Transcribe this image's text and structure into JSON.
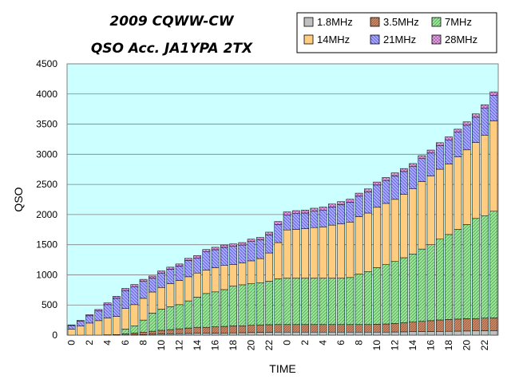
{
  "chart_data": {
    "type": "bar",
    "stacked": true,
    "title_line1": "2009 CQWW-CW",
    "title_line2": "QSO Acc.  JA1YPA  2TX",
    "xlabel": "TIME",
    "ylabel": "QSO",
    "ylim": [
      0,
      4500
    ],
    "yticks": [
      0,
      500,
      1000,
      1500,
      2000,
      2500,
      3000,
      3500,
      4000,
      4500
    ],
    "xtick_labels": [
      "0",
      "2",
      "4",
      "6",
      "8",
      "10",
      "12",
      "14",
      "16",
      "18",
      "20",
      "22",
      "0",
      "2",
      "4",
      "6",
      "8",
      "10",
      "12",
      "14",
      "16",
      "18",
      "20",
      "22"
    ],
    "x": [
      0,
      1,
      2,
      3,
      4,
      5,
      6,
      7,
      8,
      9,
      10,
      11,
      12,
      13,
      14,
      15,
      16,
      17,
      18,
      19,
      20,
      21,
      22,
      23,
      0,
      1,
      2,
      3,
      4,
      5,
      6,
      7,
      8,
      9,
      10,
      11,
      12,
      13,
      14,
      15,
      16,
      17,
      18,
      19,
      20,
      21,
      22,
      23
    ],
    "grid": true,
    "legend_position": "top-right",
    "plot_background": "#ccffff",
    "series": [
      {
        "name": "1.8MHz",
        "color": "#c0c0c0",
        "values": [
          0,
          0,
          0,
          0,
          0,
          0,
          0,
          5,
          10,
          15,
          20,
          22,
          25,
          28,
          30,
          30,
          32,
          35,
          38,
          40,
          42,
          45,
          48,
          50,
          50,
          50,
          50,
          50,
          50,
          50,
          50,
          50,
          50,
          50,
          50,
          50,
          52,
          54,
          56,
          58,
          60,
          62,
          64,
          66,
          68,
          70,
          72,
          75
        ]
      },
      {
        "name": "3.5MHz",
        "color": "#cc8866",
        "values": [
          0,
          0,
          0,
          0,
          5,
          10,
          20,
          30,
          40,
          50,
          60,
          70,
          80,
          90,
          100,
          100,
          105,
          110,
          115,
          115,
          120,
          125,
          125,
          125,
          125,
          125,
          125,
          125,
          125,
          125,
          125,
          125,
          125,
          125,
          130,
          135,
          140,
          150,
          160,
          170,
          180,
          190,
          195,
          200,
          205,
          205,
          210,
          210
        ]
      },
      {
        "name": "7MHz",
        "color": "#88dd88",
        "values": [
          0,
          0,
          0,
          0,
          0,
          0,
          80,
          120,
          200,
          300,
          350,
          380,
          400,
          450,
          500,
          560,
          580,
          610,
          660,
          680,
          690,
          700,
          720,
          760,
          770,
          770,
          770,
          770,
          770,
          770,
          770,
          780,
          840,
          880,
          940,
          990,
          1030,
          1080,
          1130,
          1200,
          1260,
          1340,
          1410,
          1490,
          1560,
          1660,
          1700,
          1770
        ]
      },
      {
        "name": "14MHz",
        "color": "#ffcc80",
        "values": [
          100,
          150,
          200,
          240,
          280,
          300,
          340,
          350,
          360,
          350,
          360,
          380,
          400,
          400,
          400,
          390,
          400,
          400,
          360,
          360,
          380,
          400,
          470,
          600,
          800,
          810,
          820,
          840,
          850,
          880,
          900,
          920,
          950,
          970,
          1000,
          1010,
          1030,
          1050,
          1080,
          1120,
          1140,
          1160,
          1170,
          1200,
          1240,
          1260,
          1330,
          1500
        ]
      },
      {
        "name": "21MHz",
        "color": "#9999ff",
        "values": [
          60,
          80,
          120,
          160,
          220,
          300,
          300,
          300,
          280,
          230,
          240,
          240,
          240,
          270,
          250,
          300,
          300,
          300,
          300,
          300,
          320,
          310,
          300,
          300,
          250,
          260,
          260,
          270,
          280,
          300,
          320,
          330,
          340,
          350,
          370,
          380,
          390,
          380,
          370,
          380,
          380,
          390,
          400,
          410,
          410,
          420,
          450,
          420
        ]
      },
      {
        "name": "28MHz",
        "color": "#dd99dd",
        "values": [
          10,
          15,
          20,
          25,
          30,
          35,
          35,
          35,
          35,
          35,
          35,
          35,
          35,
          35,
          40,
          40,
          40,
          40,
          40,
          40,
          40,
          40,
          45,
          50,
          50,
          50,
          50,
          50,
          50,
          50,
          50,
          50,
          50,
          50,
          50,
          50,
          50,
          50,
          50,
          50,
          50,
          50,
          50,
          50,
          55,
          55,
          60,
          60
        ]
      }
    ]
  }
}
